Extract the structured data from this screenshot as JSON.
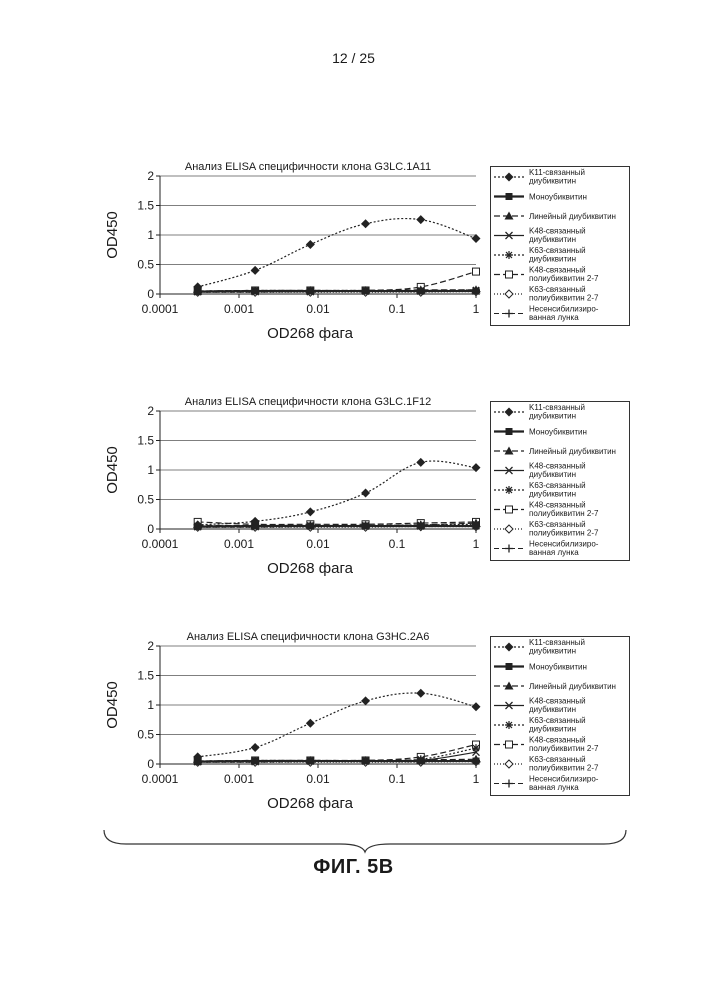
{
  "page": {
    "number": "12 / 25",
    "figure_label": "ФИГ. 5B"
  },
  "legend_entries": [
    "K11-связанный диубиквитин",
    "Моноубиквитин",
    "Линейный диубиквитин",
    "K48-связанный диубиквитин",
    "K63-связанный диубиквитин",
    "K48-связанный полиубиквитин 2-7",
    "K63-связанный полиубиквитин 2-7",
    "Несенсибилизиро-ванная лунка"
  ],
  "chart_data": [
    {
      "type": "line",
      "title": "Анализ ELISA специфичности клона G3LC.1A11",
      "xlabel": "OD268 фага",
      "ylabel": "OD450",
      "xscale": "log",
      "xlim": [
        0.0001,
        1
      ],
      "ylim": [
        0,
        2
      ],
      "x_ticks": [
        "0.0001",
        "0.001",
        "0.01",
        "0.1",
        "1"
      ],
      "y_ticks": [
        "0",
        "0.5",
        "1",
        "1.5",
        "2"
      ],
      "grid": true,
      "legend_position": "right",
      "x": [
        0.0003,
        0.0016,
        0.008,
        0.04,
        0.2,
        1
      ],
      "series": [
        {
          "name": "K11-связанный диубиквитин",
          "values": [
            0.12,
            0.4,
            0.84,
            1.19,
            1.26,
            0.94
          ]
        },
        {
          "name": "Моноубиквитин",
          "values": [
            0.04,
            0.05,
            0.05,
            0.05,
            0.05,
            0.05
          ]
        },
        {
          "name": "Линейный диубиквитин",
          "values": [
            0.05,
            0.05,
            0.06,
            0.06,
            0.07,
            0.07
          ]
        },
        {
          "name": "K48-связанный диубиквитин",
          "values": [
            0.04,
            0.04,
            0.04,
            0.05,
            0.05,
            0.05
          ]
        },
        {
          "name": "K63-связанный диубиквитин",
          "values": [
            0.05,
            0.06,
            0.06,
            0.06,
            0.06,
            0.07
          ]
        },
        {
          "name": "K48-связанный полиубиквитин 2-7",
          "values": [
            0.05,
            0.06,
            0.06,
            0.06,
            0.12,
            0.38
          ]
        },
        {
          "name": "K63-связанный полиубиквитин 2-7",
          "values": [
            0.03,
            0.03,
            0.03,
            0.03,
            0.03,
            0.04
          ]
        },
        {
          "name": "Несенсибилизиро-ванная лунка",
          "values": [
            0.03,
            0.03,
            0.04,
            0.04,
            0.04,
            0.05
          ]
        }
      ]
    },
    {
      "type": "line",
      "title": "Анализ ELISA специфичности клона G3LC.1F12",
      "xlabel": "OD268 фага",
      "ylabel": "OD450",
      "xscale": "log",
      "xlim": [
        0.0001,
        1
      ],
      "ylim": [
        0,
        2
      ],
      "x_ticks": [
        "0.0001",
        "0.001",
        "0.01",
        "0.1",
        "1"
      ],
      "y_ticks": [
        "0",
        "0.5",
        "1",
        "1.5",
        "2"
      ],
      "grid": true,
      "legend_position": "right",
      "x": [
        0.0003,
        0.0016,
        0.008,
        0.04,
        0.2,
        1
      ],
      "series": [
        {
          "name": "K11-связанный диубиквитин",
          "values": [
            0.07,
            0.13,
            0.29,
            0.61,
            1.13,
            1.04
          ]
        },
        {
          "name": "Моноубиквитин",
          "values": [
            0.04,
            0.05,
            0.05,
            0.05,
            0.05,
            0.05
          ]
        },
        {
          "name": "Линейный диубиквитин",
          "values": [
            0.06,
            0.06,
            0.06,
            0.06,
            0.07,
            0.1
          ]
        },
        {
          "name": "K48-связанный диубиквитин",
          "values": [
            0.04,
            0.04,
            0.05,
            0.05,
            0.05,
            0.06
          ]
        },
        {
          "name": "K63-связанный диубиквитин",
          "values": [
            0.05,
            0.06,
            0.06,
            0.06,
            0.07,
            0.08
          ]
        },
        {
          "name": "K48-связанный полиубиквитин 2-7",
          "values": [
            0.12,
            0.08,
            0.08,
            0.08,
            0.1,
            0.12
          ]
        },
        {
          "name": "K63-связанный полиубиквитин 2-7",
          "values": [
            0.03,
            0.03,
            0.03,
            0.03,
            0.04,
            0.04
          ]
        },
        {
          "name": "Несенсибилизиро-ванная лунка",
          "values": [
            0.03,
            0.03,
            0.04,
            0.04,
            0.04,
            0.05
          ]
        }
      ]
    },
    {
      "type": "line",
      "title": "Анализ ELISA специфичности клона G3HC.2A6",
      "xlabel": "OD268 фага",
      "ylabel": "OD450",
      "xscale": "log",
      "xlim": [
        0.0001,
        1
      ],
      "ylim": [
        0,
        2
      ],
      "x_ticks": [
        "0.0001",
        "0.001",
        "0.01",
        "0.1",
        "1"
      ],
      "y_ticks": [
        "0",
        "0.5",
        "1",
        "1.5",
        "2"
      ],
      "grid": true,
      "legend_position": "right",
      "x": [
        0.0003,
        0.0016,
        0.008,
        0.04,
        0.2,
        1
      ],
      "series": [
        {
          "name": "K11-связанный диубиквитин",
          "values": [
            0.12,
            0.28,
            0.69,
            1.07,
            1.2,
            0.97
          ]
        },
        {
          "name": "Моноубиквитин",
          "values": [
            0.04,
            0.05,
            0.05,
            0.05,
            0.05,
            0.05
          ]
        },
        {
          "name": "Линейный диубиквитин",
          "values": [
            0.05,
            0.05,
            0.06,
            0.06,
            0.07,
            0.08
          ]
        },
        {
          "name": "K48-связанный диубиквитин",
          "values": [
            0.04,
            0.04,
            0.05,
            0.05,
            0.06,
            0.2
          ]
        },
        {
          "name": "K63-связанный диубиквитин",
          "values": [
            0.05,
            0.06,
            0.06,
            0.06,
            0.08,
            0.27
          ]
        },
        {
          "name": "K48-связанный полиубиквитин 2-7",
          "values": [
            0.05,
            0.06,
            0.06,
            0.06,
            0.12,
            0.33
          ]
        },
        {
          "name": "K63-связанный полиубиквитин 2-7",
          "values": [
            0.03,
            0.03,
            0.03,
            0.03,
            0.03,
            0.04
          ]
        },
        {
          "name": "Несенсибилизиро-ванная лунка",
          "values": [
            0.03,
            0.03,
            0.04,
            0.04,
            0.04,
            0.06
          ]
        }
      ]
    }
  ]
}
